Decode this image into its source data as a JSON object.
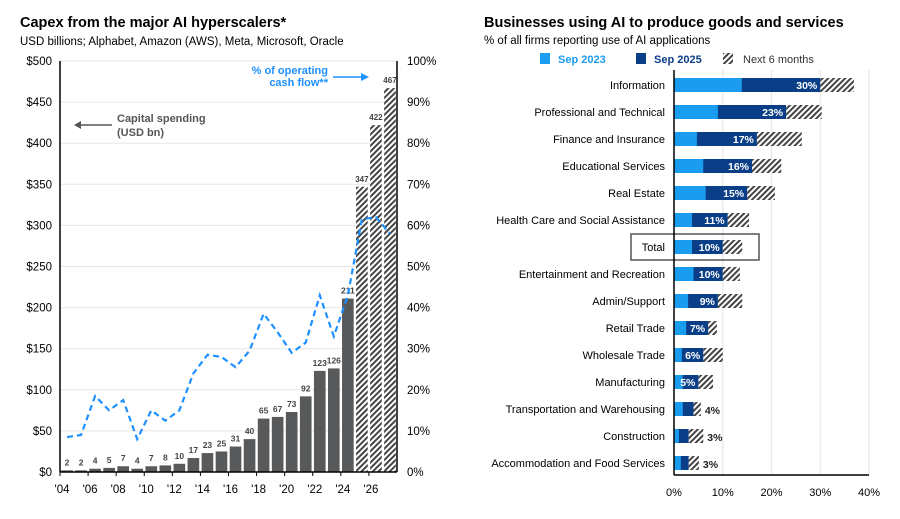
{
  "colors": {
    "bar": "#58595b",
    "line": "#1e90ff",
    "sep2023": "#1a9cf0",
    "sep2025": "#0a3f87",
    "hatch": "#444444",
    "grid": "#e6e6e6"
  },
  "chart_data": [
    {
      "type": "bar",
      "title": "Capex from the major AI hyperscalers*",
      "subtitle": "USD billions; Alphabet, Amazon (AWS), Meta, Microsoft, Oracle",
      "years": [
        2004,
        2005,
        2006,
        2007,
        2008,
        2009,
        2010,
        2011,
        2012,
        2013,
        2014,
        2015,
        2016,
        2017,
        2018,
        2019,
        2020,
        2021,
        2022,
        2023,
        2024,
        2025,
        2026,
        2027
      ],
      "x_tick_labels": [
        "'04",
        "'06",
        "'08",
        "'10",
        "'12",
        "'14",
        "'16",
        "'18",
        "'20",
        "'22",
        "'24",
        "'26"
      ],
      "series": [
        {
          "name": "Capital spending (USD bn)",
          "axis": "left",
          "kind": "bar",
          "values": [
            2,
            2,
            4,
            5,
            7,
            4,
            7,
            8,
            10,
            17,
            23,
            25,
            31,
            40,
            65,
            67,
            73,
            92,
            123,
            126,
            211,
            347,
            422,
            467
          ],
          "hatched_from_index": 21
        },
        {
          "name": "% of operating cash flow**",
          "axis": "right",
          "kind": "line",
          "style": "dashed",
          "values": [
            8.5,
            9,
            18.5,
            15,
            17.5,
            8,
            15,
            12.5,
            15,
            24,
            28.5,
            28,
            25.5,
            29.5,
            38.5,
            34,
            29,
            31.5,
            43,
            33,
            43,
            61.5,
            62,
            58
          ]
        }
      ],
      "annotations": {
        "capex": "Capital spending",
        "capex2": "(USD bn)",
        "ocf": "% of operating",
        "ocf2": "cash flow**"
      },
      "left_axis": {
        "ylim": [
          0,
          500
        ],
        "ticks": [
          "$0",
          "$50",
          "$100",
          "$150",
          "$200",
          "$250",
          "$300",
          "$350",
          "$400",
          "$450",
          "$500"
        ]
      },
      "right_axis": {
        "ylim": [
          0,
          100
        ],
        "ticks": [
          "0%",
          "10%",
          "20%",
          "30%",
          "40%",
          "50%",
          "60%",
          "70%",
          "80%",
          "90%",
          "100%"
        ]
      },
      "grid": true
    },
    {
      "type": "bar",
      "orientation": "horizontal",
      "title": "Businesses using AI to produce goods and services",
      "subtitle": "% of all firms reporting use of AI applications",
      "legend": [
        "Sep 2023",
        "Sep 2025",
        "Next 6 months"
      ],
      "legend_position": "top",
      "categories": [
        "Information",
        "Professional and Technical",
        "Finance and Insurance",
        "Educational Services",
        "Real Estate",
        "Health Care and Social Assistance",
        "Total",
        "Entertainment and Recreation",
        "Admin/Support",
        "Retail Trade",
        "Wholesale Trade",
        "Manufacturing",
        "Transportation and Warehousing",
        "Construction",
        "Accommodation and Food Services"
      ],
      "sep2023": [
        13.9,
        9,
        4.7,
        6,
        6.5,
        3.7,
        3.7,
        4,
        2.9,
        2.5,
        1.6,
        1.8,
        1.8,
        1,
        1.4
      ],
      "sep2025": [
        30,
        23,
        17,
        16,
        15,
        11,
        10,
        10,
        9,
        7,
        6,
        5,
        4,
        3,
        3
      ],
      "next6months": [
        36.9,
        30.3,
        26.2,
        22,
        20.7,
        15.4,
        14,
        13.5,
        14,
        8.8,
        10,
        8,
        5.5,
        6,
        5.1
      ],
      "data_labels": [
        "30%",
        "23%",
        "17%",
        "16%",
        "15%",
        "11%",
        "10%",
        "10%",
        "9%",
        "7%",
        "6%",
        "5%",
        "4%",
        "3%",
        "3%"
      ],
      "highlighted": "Total",
      "xlim": [
        0,
        40
      ],
      "x_tick_labels": [
        "0%",
        "10%",
        "20%",
        "30%",
        "40%"
      ],
      "grid": true
    }
  ]
}
